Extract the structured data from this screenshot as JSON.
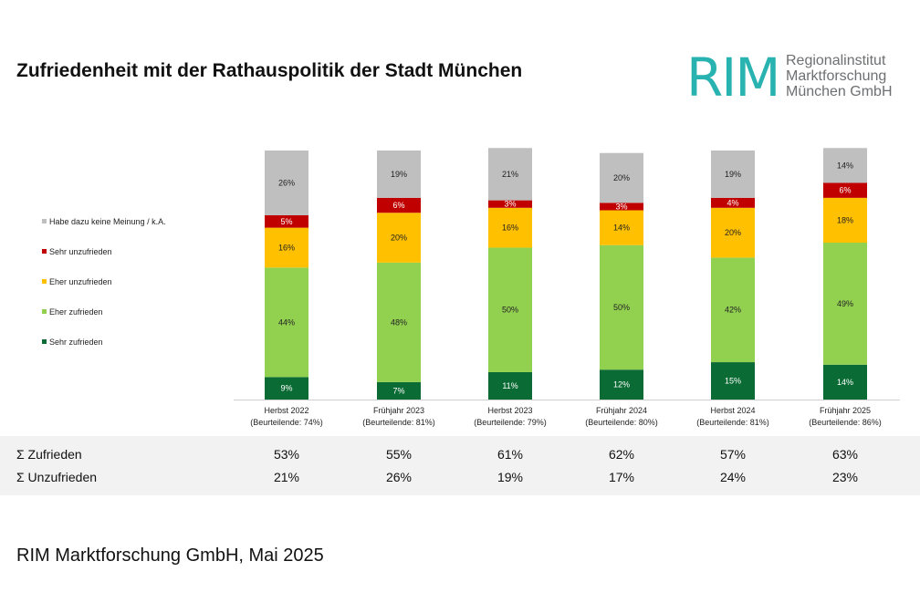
{
  "title": "Zufriedenheit mit der Rathauspolitik der Stadt München",
  "logo": {
    "mark": "RIM",
    "lines": [
      "Regionalinstitut",
      "Marktforschung",
      "München GmbH"
    ]
  },
  "chart_data": {
    "type": "bar",
    "stacked": true,
    "normalized": true,
    "categories": [
      "Herbst 2022",
      "Frühjahr 2023",
      "Herbst 2023",
      "Frühjahr 2024",
      "Herbst 2024",
      "Frühjahr 2025"
    ],
    "category_sublabels": [
      "(Beurteilende: 74%)",
      "(Beurteilende: 81%)",
      "(Beurteilende: 79%)",
      "(Beurteilende: 80%)",
      "(Beurteilende: 81%)",
      "(Beurteilende: 86%)"
    ],
    "series": [
      {
        "name": "Sehr zufrieden",
        "color": "#0b6b34",
        "values": [
          9,
          7,
          11,
          12,
          15,
          14
        ],
        "labels": [
          "9%",
          "7%",
          "11%",
          "12%",
          "15%",
          "14%"
        ]
      },
      {
        "name": "Eher zufrieden",
        "color": "#92d050",
        "values": [
          44,
          48,
          50,
          50,
          42,
          49
        ],
        "labels": [
          "44%",
          "48%",
          "50%",
          "50%",
          "42%",
          "49%"
        ]
      },
      {
        "name": "Eher unzufrieden",
        "color": "#ffc000",
        "values": [
          16,
          20,
          16,
          14,
          20,
          18
        ],
        "labels": [
          "16%",
          "20%",
          "16%",
          "14%",
          "20%",
          "18%"
        ]
      },
      {
        "name": "Sehr unzufrieden",
        "color": "#c00000",
        "values": [
          5,
          6,
          3,
          3,
          4,
          6
        ],
        "labels": [
          "5%",
          "6%",
          "3%",
          "3%",
          "4%",
          "6%"
        ]
      },
      {
        "name": "Habe dazu keine Meinung / k.A.",
        "color": "#bfbfbf",
        "values": [
          26,
          19,
          21,
          20,
          19,
          14
        ],
        "labels": [
          "26%",
          "19%",
          "21%",
          "20%",
          "19%",
          "14%"
        ]
      }
    ],
    "legend_order": [
      "Habe dazu keine Meinung / k.A.",
      "Sehr unzufrieden",
      "Eher unzufrieden",
      "Eher zufrieden",
      "Sehr zufrieden"
    ],
    "legend_position": "left",
    "ylim": [
      0,
      100
    ]
  },
  "summary": {
    "rows": [
      {
        "label": "Σ Zufrieden",
        "values": [
          "53%",
          "55%",
          "61%",
          "62%",
          "57%",
          "63%"
        ]
      },
      {
        "label": "Σ Unzufrieden",
        "values": [
          "21%",
          "26%",
          "19%",
          "17%",
          "24%",
          "23%"
        ]
      }
    ]
  },
  "footer": "RIM Marktforschung GmbH, Mai 2025"
}
